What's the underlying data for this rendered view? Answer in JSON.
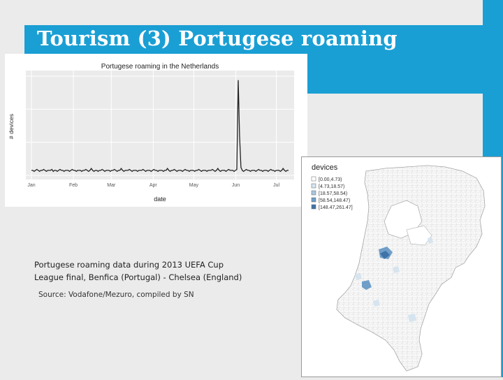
{
  "slide": {
    "title": "Tourism (3) Portugese roaming",
    "caption_lines": [
      "Portugese roaming data during 2013 UEFA Cup",
      "League final, Benfica (Portugal) - Chelsea (England)"
    ],
    "source": "Source: Vodafone/Mezuro, compiled by SN"
  },
  "colors": {
    "accent": "#1a9fd4",
    "background": "#ebebeb",
    "line": "#222222"
  },
  "chart_data": {
    "type": "line",
    "title": "Portugese roaming in the Netherlands",
    "xlabel": "date",
    "ylabel": "# devices",
    "x_ticks": [
      "Jan",
      "Feb",
      "Mar",
      "Apr",
      "May",
      "Jun",
      "Jul"
    ],
    "xlim_days": [
      0,
      190
    ],
    "ylim": [
      0,
      100
    ],
    "grid": true,
    "series": [
      {
        "values": [
          5,
          5,
          4,
          5,
          6,
          5,
          4,
          5,
          5,
          6,
          5,
          4,
          5,
          5,
          5,
          6,
          4,
          5,
          5,
          4,
          5,
          6,
          5,
          5,
          4,
          5,
          5,
          5,
          4,
          5,
          6,
          5,
          5,
          4,
          5,
          5,
          5,
          4,
          5,
          5,
          6,
          5,
          4,
          5,
          7,
          5,
          4,
          5,
          5,
          4,
          5,
          5,
          6,
          5,
          4,
          5,
          5,
          5,
          4,
          5,
          5,
          6,
          5,
          4,
          5,
          5,
          7,
          5,
          4,
          5,
          5,
          5,
          6,
          5,
          4,
          5,
          5,
          5,
          4,
          5,
          5,
          5,
          6,
          5,
          4,
          5,
          5,
          5,
          4,
          5,
          6,
          5,
          5,
          4,
          5,
          5,
          5,
          4,
          5,
          5,
          7,
          5,
          4,
          5,
          5,
          6,
          5,
          4,
          5,
          5,
          5,
          4,
          5,
          6,
          5,
          5,
          4,
          5,
          5,
          5,
          4,
          5,
          5,
          6,
          5,
          4,
          5,
          5,
          5,
          4,
          5,
          5,
          5,
          6,
          5,
          4,
          5,
          7,
          5,
          4,
          5,
          5,
          5,
          4,
          5,
          6,
          5,
          5,
          5,
          4,
          5,
          6,
          96,
          40,
          8,
          5,
          4,
          5,
          6,
          5,
          5,
          4,
          5,
          5,
          5,
          4,
          5,
          6,
          5,
          5,
          4,
          5,
          5,
          5,
          4,
          5,
          6,
          5,
          5,
          4,
          5,
          5,
          5,
          4,
          5,
          7,
          5,
          4,
          5,
          5
        ]
      }
    ]
  },
  "map": {
    "legend_title": "devices",
    "legend_entries": [
      {
        "label": "[0.00,4.73)",
        "color": "#ffffff"
      },
      {
        "label": "[4.73,18.57)",
        "color": "#d6e4ef"
      },
      {
        "label": "[18.57,58.54)",
        "color": "#a9c6de"
      },
      {
        "label": "[58.54,148.47)",
        "color": "#6f9ec8"
      },
      {
        "label": "[148.47,261.47]",
        "color": "#3e73a8"
      }
    ]
  }
}
